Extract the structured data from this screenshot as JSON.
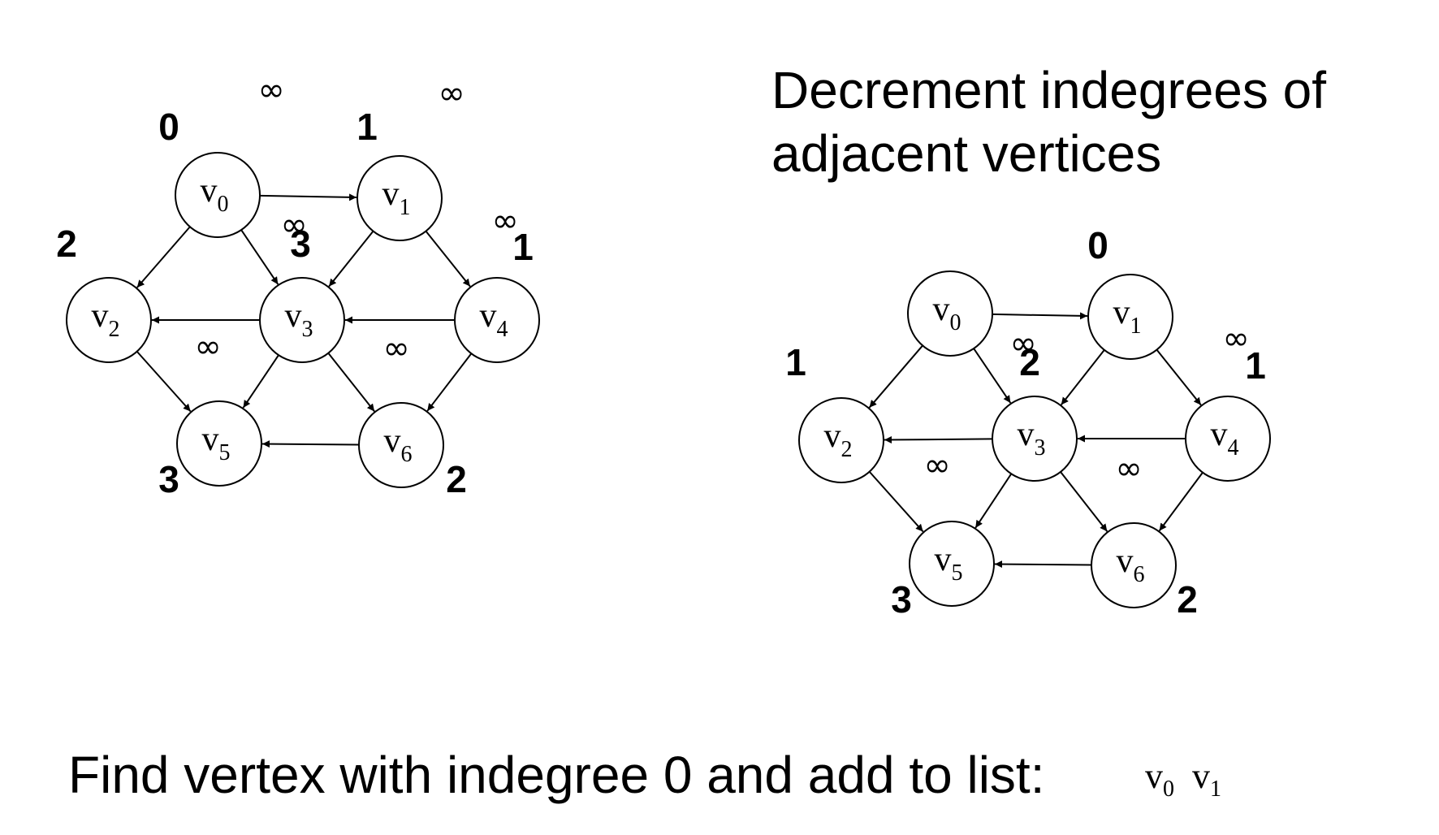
{
  "heading": {
    "line1": "Decrement indegrees of",
    "line2": "adjacent vertices"
  },
  "footer": {
    "text": "Find vertex with indegree 0 and add to list:",
    "sorted_list": [
      {
        "name": "v",
        "sub": "0"
      },
      {
        "name": "v",
        "sub": "1"
      }
    ]
  },
  "infinity_symbol": "∞",
  "graphs": [
    {
      "id": "before",
      "vertices": [
        {
          "id": "v0",
          "name": "v",
          "sub": "0",
          "indegree": "0"
        },
        {
          "id": "v1",
          "name": "v",
          "sub": "1",
          "indegree": "1"
        },
        {
          "id": "v2",
          "name": "v",
          "sub": "2",
          "indegree": "2"
        },
        {
          "id": "v3",
          "name": "v",
          "sub": "3",
          "indegree": "3"
        },
        {
          "id": "v4",
          "name": "v",
          "sub": "4",
          "indegree": "1"
        },
        {
          "id": "v5",
          "name": "v",
          "sub": "5",
          "indegree": "3"
        },
        {
          "id": "v6",
          "name": "v",
          "sub": "6",
          "indegree": "2"
        }
      ],
      "edges": [
        [
          "v0",
          "v1"
        ],
        [
          "v0",
          "v2"
        ],
        [
          "v0",
          "v3"
        ],
        [
          "v1",
          "v3"
        ],
        [
          "v1",
          "v4"
        ],
        [
          "v3",
          "v2"
        ],
        [
          "v3",
          "v5"
        ],
        [
          "v3",
          "v6"
        ],
        [
          "v4",
          "v3"
        ],
        [
          "v4",
          "v6"
        ],
        [
          "v2",
          "v5"
        ],
        [
          "v6",
          "v5"
        ]
      ]
    },
    {
      "id": "after",
      "vertices": [
        {
          "id": "v0",
          "name": "v",
          "sub": "0",
          "indegree": ""
        },
        {
          "id": "v1",
          "name": "v",
          "sub": "1",
          "indegree": "0"
        },
        {
          "id": "v2",
          "name": "v",
          "sub": "2",
          "indegree": "1"
        },
        {
          "id": "v3",
          "name": "v",
          "sub": "3",
          "indegree": "2"
        },
        {
          "id": "v4",
          "name": "v",
          "sub": "4",
          "indegree": "1"
        },
        {
          "id": "v5",
          "name": "v",
          "sub": "5",
          "indegree": "3"
        },
        {
          "id": "v6",
          "name": "v",
          "sub": "6",
          "indegree": "2"
        }
      ],
      "edges": [
        [
          "v0",
          "v1"
        ],
        [
          "v0",
          "v2"
        ],
        [
          "v0",
          "v3"
        ],
        [
          "v1",
          "v3"
        ],
        [
          "v1",
          "v4"
        ],
        [
          "v3",
          "v2"
        ],
        [
          "v3",
          "v5"
        ],
        [
          "v3",
          "v6"
        ],
        [
          "v4",
          "v3"
        ],
        [
          "v4",
          "v6"
        ],
        [
          "v2",
          "v5"
        ],
        [
          "v6",
          "v5"
        ]
      ]
    }
  ]
}
